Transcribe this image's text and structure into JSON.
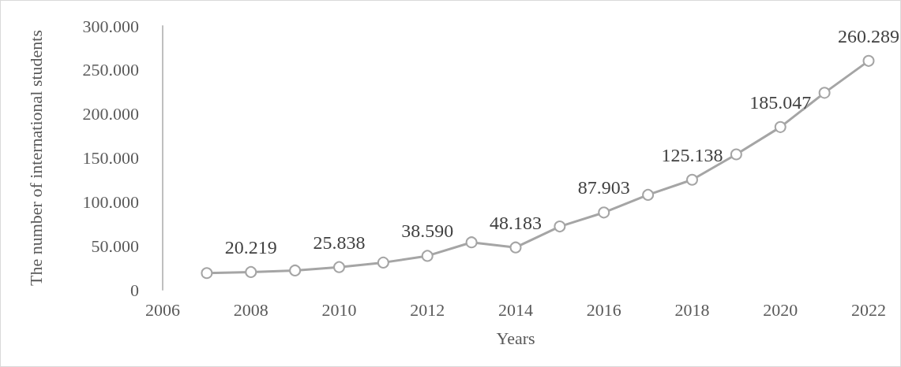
{
  "chart_data": {
    "type": "line",
    "xlabel": "Years",
    "ylabel": "The number of international students",
    "x": [
      2007,
      2008,
      2009,
      2010,
      2011,
      2012,
      2013,
      2014,
      2015,
      2016,
      2017,
      2018,
      2019,
      2020,
      2021,
      2022
    ],
    "series": [
      {
        "color": "#a5a5a5",
        "values": [
          19000,
          20219,
          22000,
          25838,
          31000,
          38590,
          54000,
          48183,
          72000,
          87903,
          108000,
          125138,
          154000,
          185047,
          224000,
          260289
        ],
        "value_labels": [
          null,
          "20.219",
          null,
          "25.838",
          null,
          "38.590",
          null,
          "48.183",
          null,
          "87.903",
          null,
          "125.138",
          null,
          "185.047",
          null,
          "260.289"
        ]
      }
    ],
    "xlim": [
      2006,
      2022
    ],
    "xticks": [
      2006,
      2008,
      2010,
      2012,
      2014,
      2016,
      2018,
      2020,
      2022
    ],
    "ylim": [
      0,
      300000
    ],
    "yticks": [
      0,
      {
        "value": 50000,
        "label": "50.000"
      },
      {
        "value": 100000,
        "label": "100.000"
      },
      {
        "value": 150000,
        "label": "150.000"
      },
      {
        "value": 200000,
        "label": "200.000"
      },
      {
        "value": 250000,
        "label": "250.000"
      },
      {
        "value": 300000,
        "label": "300.000"
      }
    ],
    "grid": false,
    "marker": "circle",
    "line_style": "solid"
  }
}
